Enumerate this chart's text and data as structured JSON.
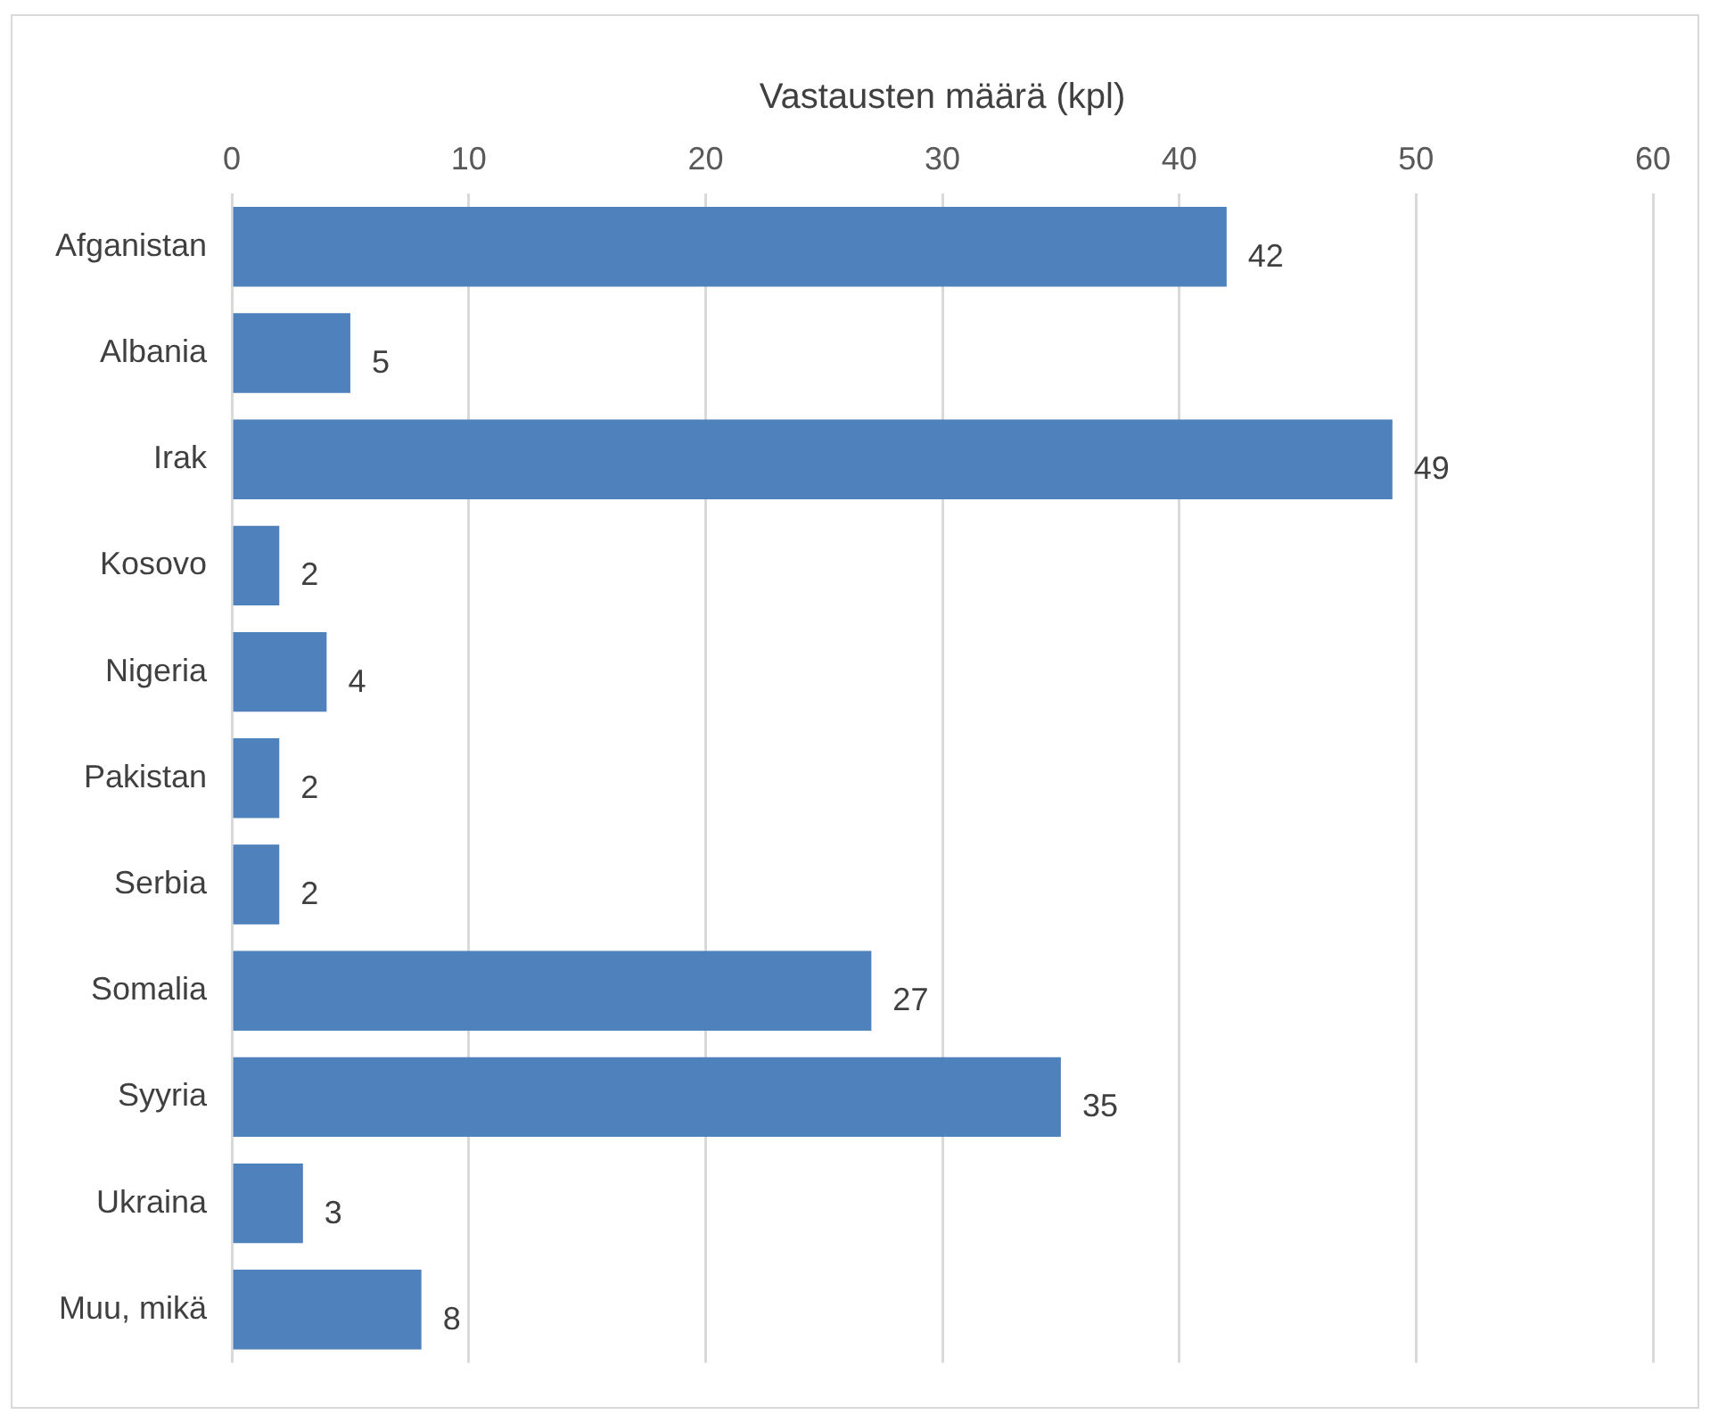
{
  "chart_data": {
    "type": "bar",
    "orientation": "horizontal",
    "xlabel": "Vastausten määrä (kpl)",
    "categories": [
      "Afganistan",
      "Albania",
      "Irak",
      "Kosovo",
      "Nigeria",
      "Pakistan",
      "Serbia",
      "Somalia",
      "Syyria",
      "Ukraina",
      "Muu, mikä"
    ],
    "values": [
      42,
      5,
      49,
      2,
      4,
      2,
      2,
      27,
      35,
      3,
      8
    ],
    "color": "#4f81bd",
    "xlim": [
      0,
      60
    ],
    "xticks": [
      0,
      10,
      20,
      30,
      40,
      50,
      60
    ],
    "grid": "x",
    "legend": false,
    "data_labels": true
  }
}
